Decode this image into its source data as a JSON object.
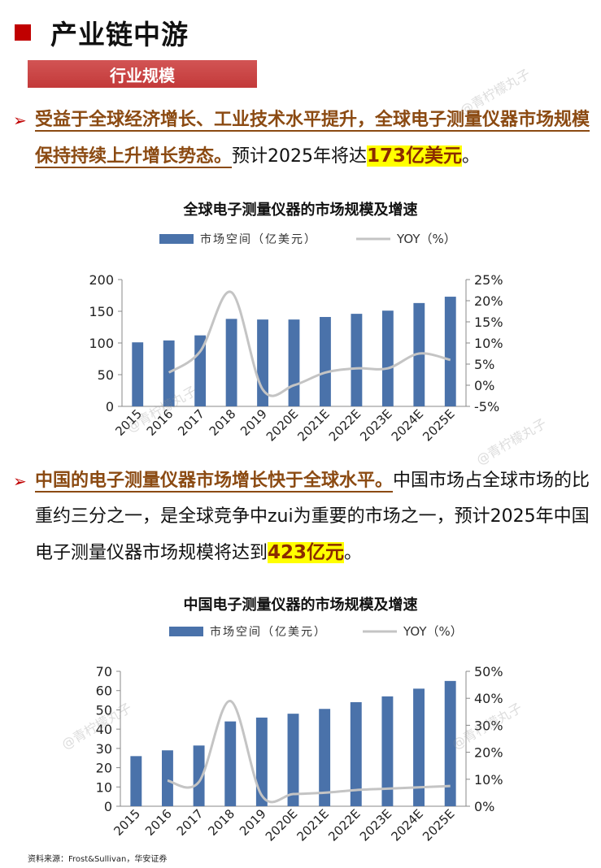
{
  "header": {
    "title": "产业链中游",
    "subtitle": "行业规模"
  },
  "bullet1": {
    "bold": "受益于全球经济增长、工业技术水平提升，全球电子测量仪器市场规模保持持续上升增长势态。",
    "normal": "预计2025年将达",
    "highlight": "173亿美元",
    "end": "。"
  },
  "bullet2": {
    "bold": "中国的电子测量仪器市场增长快于全球水平。",
    "normal": "中国市场占全球市场的比重约三分之一，是全球竞争中zui为重要的市场之一，预计2025年中国电子测量仪器市场规模将达到",
    "highlight": "423亿元",
    "end": "。"
  },
  "watermark": "@青柠檬丸子",
  "source": "资料来源：Frost&Sullivan，华安证券",
  "colors": {
    "bar": "#4a72aa",
    "line": "#c4c4c4",
    "accent_red": "#c00000",
    "highlight": "#ffff00"
  },
  "chart_data": [
    {
      "type": "bar",
      "title": "全球电子测量仪器的市场规模及增速",
      "categories": [
        "2015",
        "2016",
        "2017",
        "2018",
        "2019",
        "2020E",
        "2021E",
        "2022E",
        "2023E",
        "2024E",
        "2025E"
      ],
      "series": [
        {
          "name": "市场空间（亿美元）",
          "type": "bar",
          "axis": "left",
          "values": [
            101,
            104,
            112,
            138,
            137,
            137,
            141,
            146,
            151,
            163,
            173
          ]
        },
        {
          "name": "YOY（%）",
          "type": "line",
          "axis": "right",
          "values": [
            null,
            3,
            8,
            22,
            -1,
            0,
            3,
            4,
            4,
            7.5,
            6
          ]
        }
      ],
      "ylim": [
        0,
        200
      ],
      "yticks": [
        0,
        50,
        100,
        150,
        200
      ],
      "y2lim": [
        -5,
        25
      ],
      "y2ticks": [
        "-5%",
        "0%",
        "5%",
        "10%",
        "15%",
        "20%",
        "25%"
      ],
      "legend_position": "top"
    },
    {
      "type": "bar",
      "title": "中国电子测量仪器的市场规模及增速",
      "categories": [
        "2015",
        "2016",
        "2017",
        "2018",
        "2019",
        "2020E",
        "2021E",
        "2022E",
        "2023E",
        "2024E",
        "2025E"
      ],
      "series": [
        {
          "name": "市场空间（亿美元）",
          "type": "bar",
          "axis": "left",
          "values": [
            26,
            29,
            31.5,
            44,
            46,
            48,
            50.5,
            54,
            57,
            61,
            65
          ]
        },
        {
          "name": "YOY（%）",
          "type": "line",
          "axis": "right",
          "values": [
            null,
            9.5,
            9,
            39,
            4,
            4.5,
            5,
            6,
            6.5,
            7,
            7.5
          ]
        }
      ],
      "ylim": [
        0,
        70
      ],
      "yticks": [
        0,
        10,
        20,
        30,
        40,
        50,
        60,
        70
      ],
      "y2lim": [
        0,
        50
      ],
      "y2ticks": [
        "0%",
        "10%",
        "20%",
        "30%",
        "40%",
        "50%"
      ],
      "legend_position": "top"
    }
  ]
}
